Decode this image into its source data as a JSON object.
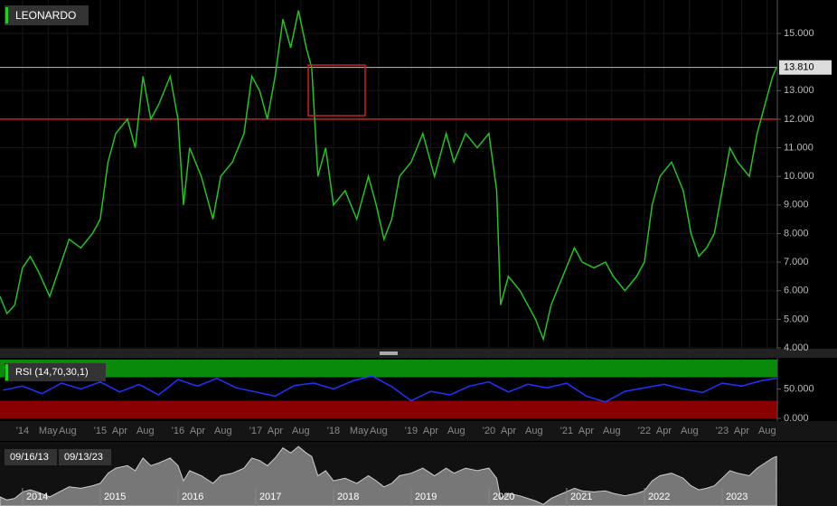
{
  "chart_data": [
    {
      "type": "line",
      "title": "LEONARDO",
      "color": "#22c422",
      "x": [
        2013.71,
        2013.8,
        2013.9,
        2014.0,
        2014.1,
        2014.2,
        2014.35,
        2014.5,
        2014.6,
        2014.75,
        2014.9,
        2015.0,
        2015.1,
        2015.2,
        2015.35,
        2015.45,
        2015.55,
        2015.65,
        2015.75,
        2015.9,
        2016.0,
        2016.07,
        2016.15,
        2016.3,
        2016.45,
        2016.55,
        2016.7,
        2016.85,
        2016.95,
        2017.05,
        2017.15,
        2017.25,
        2017.35,
        2017.45,
        2017.55,
        2017.65,
        2017.72,
        2017.8,
        2017.9,
        2018.0,
        2018.15,
        2018.3,
        2018.45,
        2018.55,
        2018.65,
        2018.75,
        2018.85,
        2019.0,
        2019.15,
        2019.3,
        2019.45,
        2019.55,
        2019.7,
        2019.85,
        2020.0,
        2020.1,
        2020.15,
        2020.25,
        2020.4,
        2020.6,
        2020.7,
        2020.8,
        2020.95,
        2021.1,
        2021.2,
        2021.35,
        2021.5,
        2021.6,
        2021.75,
        2021.9,
        2022.0,
        2022.1,
        2022.2,
        2022.35,
        2022.5,
        2022.6,
        2022.7,
        2022.8,
        2022.9,
        2023.0,
        2023.1,
        2023.2,
        2023.35,
        2023.45,
        2023.55,
        2023.65,
        2023.7
      ],
      "values": [
        5.8,
        5.2,
        5.5,
        6.8,
        7.2,
        6.7,
        5.8,
        7.0,
        7.8,
        7.5,
        8.0,
        8.5,
        10.5,
        11.5,
        12.0,
        11.0,
        13.5,
        12.0,
        12.5,
        13.5,
        12.0,
        9.0,
        11.0,
        10.0,
        8.5,
        10.0,
        10.5,
        11.5,
        13.5,
        13.0,
        12.0,
        13.5,
        15.5,
        14.5,
        15.8,
        14.5,
        13.8,
        10.0,
        11.0,
        9.0,
        9.5,
        8.5,
        10.0,
        9.0,
        7.8,
        8.5,
        10.0,
        10.5,
        11.5,
        10.0,
        11.5,
        10.5,
        11.5,
        11.0,
        11.5,
        9.5,
        5.5,
        6.5,
        6.0,
        5.0,
        4.3,
        5.5,
        6.5,
        7.5,
        7.0,
        6.8,
        7.0,
        6.5,
        6.0,
        6.5,
        7.0,
        9.0,
        10.0,
        10.5,
        9.5,
        8.0,
        7.2,
        7.5,
        8.0,
        9.5,
        11.0,
        10.5,
        10.0,
        11.5,
        12.5,
        13.5,
        13.81
      ],
      "xlim": [
        2013.71,
        2023.71
      ],
      "ylim": [
        4,
        16.17
      ],
      "grid": true,
      "yticks": [
        {
          "value": 4,
          "label": "4.000"
        },
        {
          "value": 5,
          "label": "5.000"
        },
        {
          "value": 6,
          "label": "6.000"
        },
        {
          "value": 7,
          "label": "7.000"
        },
        {
          "value": 8,
          "label": "8.000"
        },
        {
          "value": 9,
          "label": "9.000"
        },
        {
          "value": 10,
          "label": "10.000"
        },
        {
          "value": 11,
          "label": "11.000"
        },
        {
          "value": 12,
          "label": "12.000"
        },
        {
          "value": 13,
          "label": "13.000"
        },
        {
          "value": 15,
          "label": "15.000"
        }
      ],
      "xticks": [
        {
          "value": 2014,
          "label": "'14"
        },
        {
          "value": 2014.33,
          "label": "May"
        },
        {
          "value": 2014.58,
          "label": "Aug"
        },
        {
          "value": 2015,
          "label": "'15"
        },
        {
          "value": 2015.25,
          "label": "Apr"
        },
        {
          "value": 2015.58,
          "label": "Aug"
        },
        {
          "value": 2016,
          "label": "'16"
        },
        {
          "value": 2016.25,
          "label": "Apr"
        },
        {
          "value": 2016.58,
          "label": "Aug"
        },
        {
          "value": 2017,
          "label": "'17"
        },
        {
          "value": 2017.25,
          "label": "Apr"
        },
        {
          "value": 2017.58,
          "label": "Aug"
        },
        {
          "value": 2018,
          "label": "'18"
        },
        {
          "value": 2018.33,
          "label": "May"
        },
        {
          "value": 2018.58,
          "label": "Aug"
        },
        {
          "value": 2019,
          "label": "'19"
        },
        {
          "value": 2019.25,
          "label": "Apr"
        },
        {
          "value": 2019.58,
          "label": "Aug"
        },
        {
          "value": 2020,
          "label": "'20"
        },
        {
          "value": 2020.25,
          "label": "Apr"
        },
        {
          "value": 2020.58,
          "label": "Aug"
        },
        {
          "value": 2021,
          "label": "'21"
        },
        {
          "value": 2021.25,
          "label": "Apr"
        },
        {
          "value": 2021.58,
          "label": "Aug"
        },
        {
          "value": 2022,
          "label": "'22"
        },
        {
          "value": 2022.25,
          "label": "Apr"
        },
        {
          "value": 2022.58,
          "label": "Aug"
        },
        {
          "value": 2023,
          "label": "'23"
        },
        {
          "value": 2023.25,
          "label": "Apr"
        },
        {
          "value": 2023.58,
          "label": "Aug"
        }
      ],
      "last": {
        "value": 13.81,
        "label": "13.810"
      },
      "hline": 12,
      "navigator_xticks": [
        2014,
        2015,
        2016,
        2017,
        2018,
        2019,
        2020,
        2021,
        2022,
        2023
      ],
      "range_start": "09/16/13",
      "range_end": "09/13/23"
    },
    {
      "type": "line",
      "title": "RSI (14,70,30,1)",
      "color": "#2233ff",
      "x": [
        2013.75,
        2014.0,
        2014.25,
        2014.5,
        2014.75,
        2015.0,
        2015.25,
        2015.5,
        2015.75,
        2016.0,
        2016.25,
        2016.5,
        2016.75,
        2017.0,
        2017.25,
        2017.5,
        2017.75,
        2018.0,
        2018.25,
        2018.5,
        2018.75,
        2019.0,
        2019.25,
        2019.5,
        2019.75,
        2020.0,
        2020.25,
        2020.5,
        2020.75,
        2021.0,
        2021.25,
        2021.5,
        2021.75,
        2022.0,
        2022.25,
        2022.5,
        2022.75,
        2023.0,
        2023.25,
        2023.5,
        2023.7
      ],
      "values": [
        48,
        55,
        42,
        60,
        50,
        62,
        45,
        58,
        40,
        66,
        55,
        68,
        52,
        45,
        38,
        56,
        60,
        50,
        64,
        72,
        54,
        30,
        46,
        40,
        55,
        62,
        45,
        58,
        52,
        60,
        38,
        28,
        46,
        52,
        58,
        50,
        44,
        60,
        55,
        64,
        68
      ],
      "xlim": [
        2013.71,
        2023.71
      ],
      "ylim": [
        0,
        100
      ],
      "upper_band": 70,
      "lower_band": 30,
      "yticks": [
        {
          "value": 0,
          "label": "0.000"
        },
        {
          "value": 50,
          "label": "50.000"
        }
      ]
    }
  ]
}
